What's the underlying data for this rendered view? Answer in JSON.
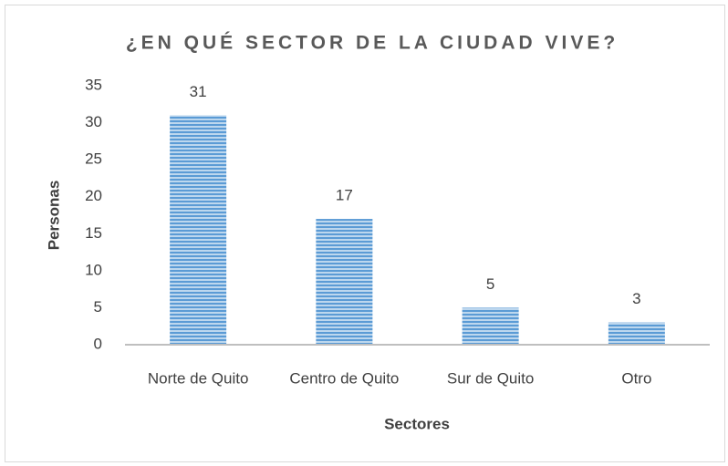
{
  "chart_data": {
    "type": "bar",
    "title": "¿EN QUÉ SECTOR DE LA CIUDAD VIVE?",
    "x_label": "Sectores",
    "y_label": "Personas",
    "categories": [
      "Norte de Quito",
      "Centro de Quito",
      "Sur de Quito",
      "Otro"
    ],
    "values": [
      31,
      17,
      5,
      3
    ],
    "color": "#5b9bd5",
    "ylim": [
      0,
      35
    ],
    "yticks": [
      0,
      5,
      10,
      15,
      20,
      25,
      30,
      35
    ],
    "grid": false
  }
}
